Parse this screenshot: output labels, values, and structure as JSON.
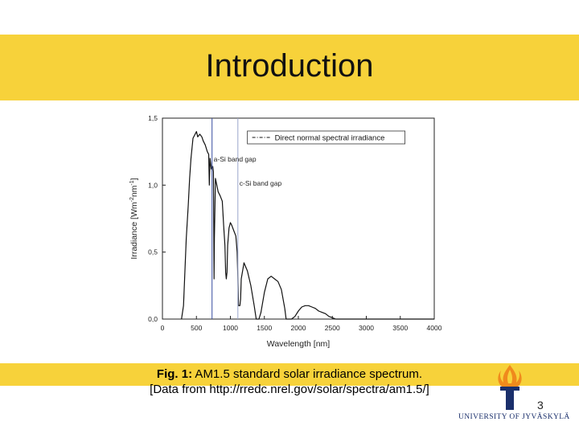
{
  "slide": {
    "title": "Introduction",
    "caption_fig": "Fig. 1:",
    "caption_text": " AM1.5 standard solar irradiance spectrum.",
    "caption_source": "[Data from http://rredc.nrel.gov/solar/spectra/am1.5/]",
    "page_number": "3",
    "university": "UNIVERSITY OF JYVÄSKYLÄ",
    "accent_color": "#f7d23a"
  },
  "chart_data": {
    "type": "line",
    "xlabel": "Wavelength [nm]",
    "ylabel_parts": [
      "Irradiance [Wm",
      "-2",
      "nm",
      "-1",
      "]"
    ],
    "xlim": [
      0,
      4000
    ],
    "ylim": [
      0,
      1.5
    ],
    "xticks": [
      0,
      500,
      1000,
      1500,
      2000,
      2500,
      3000,
      3500,
      4000
    ],
    "xtick_labels": [
      "0",
      "500",
      "1000",
      "1500",
      "2000",
      "2500",
      "3000",
      "3500",
      "4000"
    ],
    "yticks": [
      0,
      0.5,
      1.0,
      1.5
    ],
    "ytick_labels": [
      "0,0",
      "0,5",
      "1,0",
      "1,5"
    ],
    "grid": false,
    "legend_position": "top-right",
    "series": [
      {
        "name": "Direct normal spectral irradiance",
        "x": [
          280,
          310,
          350,
          380,
          400,
          420,
          450,
          480,
          500,
          520,
          550,
          580,
          600,
          630,
          660,
          680,
          690,
          700,
          720,
          740,
          750,
          760,
          765,
          780,
          800,
          820,
          850,
          880,
          900,
          920,
          930,
          940,
          950,
          960,
          980,
          1000,
          1020,
          1050,
          1080,
          1100,
          1110,
          1120,
          1130,
          1140,
          1150,
          1160,
          1200,
          1250,
          1300,
          1350,
          1380,
          1400,
          1420,
          1450,
          1500,
          1550,
          1600,
          1650,
          1700,
          1750,
          1800,
          1820,
          1850,
          1880,
          1900,
          1950,
          2000,
          2050,
          2100,
          2150,
          2200,
          2250,
          2300,
          2350,
          2400,
          2450,
          2500,
          2550,
          2600,
          2700,
          3000,
          3500,
          4000
        ],
        "y": [
          0.0,
          0.1,
          0.6,
          0.85,
          1.05,
          1.2,
          1.35,
          1.38,
          1.4,
          1.36,
          1.38,
          1.36,
          1.33,
          1.3,
          1.25,
          1.23,
          1.0,
          1.2,
          1.12,
          1.14,
          1.1,
          0.3,
          0.6,
          1.05,
          1.0,
          0.95,
          0.92,
          0.88,
          0.7,
          0.55,
          0.35,
          0.3,
          0.35,
          0.55,
          0.68,
          0.72,
          0.7,
          0.66,
          0.62,
          0.5,
          0.3,
          0.1,
          0.1,
          0.1,
          0.15,
          0.3,
          0.42,
          0.36,
          0.25,
          0.1,
          0.0,
          0.0,
          0.0,
          0.05,
          0.2,
          0.3,
          0.32,
          0.3,
          0.28,
          0.22,
          0.08,
          0.0,
          0.0,
          0.0,
          0.0,
          0.02,
          0.06,
          0.09,
          0.1,
          0.1,
          0.09,
          0.08,
          0.06,
          0.05,
          0.04,
          0.02,
          0.01,
          0.0,
          0.0,
          0.0,
          0.0,
          0.0,
          0.0
        ]
      }
    ],
    "annotations": [
      {
        "text": "a-Si band gap",
        "x": 730
      },
      {
        "text": "c-Si band gap",
        "x": 1110
      }
    ]
  }
}
